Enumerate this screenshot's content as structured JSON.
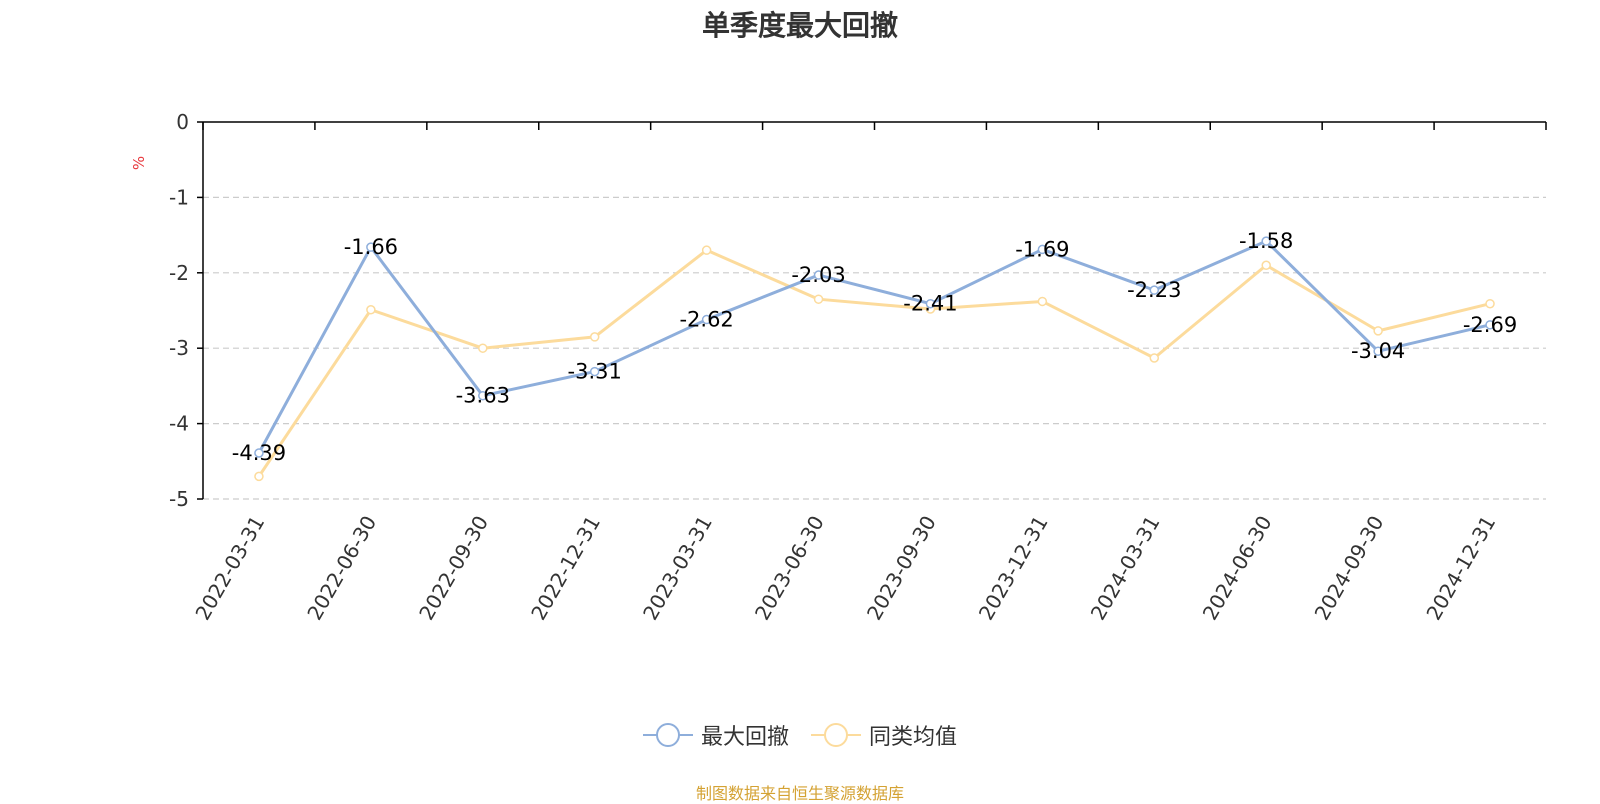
{
  "chart_data": {
    "type": "line",
    "title": "单季度最大回撤",
    "ylabel": "%",
    "ylim": [
      -5,
      0
    ],
    "y_ticks": [
      0,
      -1,
      -2,
      -3,
      -4,
      -5
    ],
    "grid": true,
    "legend_position": "bottom",
    "categories": [
      "2022-03-31",
      "2022-06-30",
      "2022-09-30",
      "2022-12-31",
      "2023-03-31",
      "2023-06-30",
      "2023-09-30",
      "2023-12-31",
      "2024-03-31",
      "2024-06-30",
      "2024-09-30",
      "2024-12-31"
    ],
    "series": [
      {
        "name": "最大回撤",
        "color": "#8eaedb",
        "values": [
          -4.39,
          -1.66,
          -3.63,
          -3.31,
          -2.62,
          -2.03,
          -2.41,
          -1.69,
          -2.23,
          -1.58,
          -3.04,
          -2.69
        ],
        "show_labels": true
      },
      {
        "name": "同类均值",
        "color": "#fcdb9c",
        "values": [
          -4.7,
          -2.49,
          -3.0,
          -2.85,
          -1.7,
          -2.35,
          -2.48,
          -2.38,
          -3.13,
          -1.9,
          -2.77,
          -2.41
        ],
        "show_labels": false
      }
    ]
  },
  "source_text": "制图数据来自恒生聚源数据库",
  "colors": {
    "axis": "#000000",
    "grid": "#cccccc",
    "ylabel": "#e8383d",
    "source": "#d4a233",
    "text": "#333333"
  }
}
